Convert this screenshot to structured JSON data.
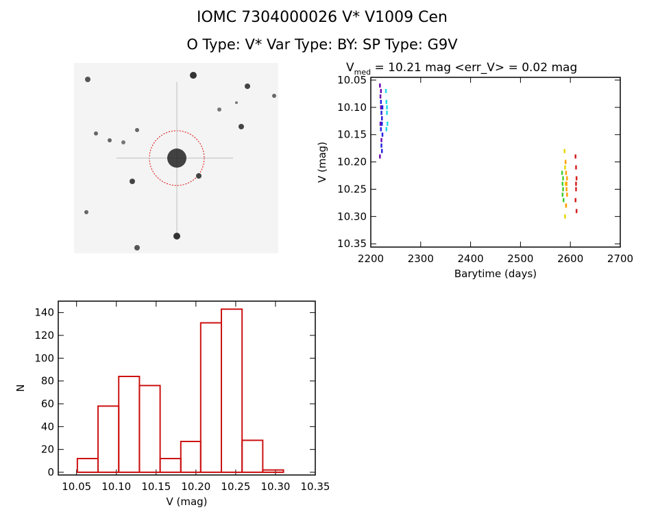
{
  "header": {
    "title": "IOMC 7304000026    V* V1009 Cen",
    "subtitle": "O Type: V*  Var Type: BY:  SP Type: G9V"
  },
  "chart_data": [
    {
      "type": "scatter",
      "title": {
        "main": "V",
        "sub": "med",
        "rest": " = 10.21 mag <err_V> = 0.02 mag"
      },
      "x_label": "Barytime (days)",
      "y_label": "V (mag)",
      "xlim": [
        2200,
        2700
      ],
      "xticks": [
        2200,
        2300,
        2400,
        2500,
        2600,
        2700
      ],
      "ylim": [
        10.356,
        10.045
      ],
      "yticks": [
        10.05,
        {
          "value": 10.1,
          "label": "10.10"
        },
        10.15,
        {
          "value": 10.2,
          "label": "10.20"
        },
        10.25,
        {
          "value": 10.3,
          "label": "10.30"
        },
        10.35
      ],
      "series": [
        {
          "color": "#6a0ab0",
          "x": [
            2218,
            2219,
            2220,
            2219,
            2221,
            2218,
            2220,
            2222
          ],
          "values": [
            10.06,
            10.08,
            10.1,
            10.13,
            10.16,
            10.19,
            10.07,
            10.12
          ]
        },
        {
          "color": "#2424e0",
          "x": [
            2220,
            2221,
            2222,
            2223,
            2221,
            2222,
            2220,
            2223,
            2222
          ],
          "values": [
            10.09,
            10.11,
            10.13,
            10.15,
            10.17,
            10.12,
            10.14,
            10.1,
            10.18
          ]
        },
        {
          "color": "#20d8e8",
          "x": [
            2230,
            2231,
            2232,
            2233,
            2231,
            2232
          ],
          "values": [
            10.07,
            10.09,
            10.11,
            10.13,
            10.14,
            10.1
          ]
        },
        {
          "color": "#44cc30",
          "x": [
            2583,
            2584,
            2585,
            2586,
            2584,
            2585
          ],
          "values": [
            10.22,
            10.24,
            10.25,
            10.27,
            10.26,
            10.23
          ]
        },
        {
          "color": "#e6d800",
          "x": [
            2588,
            2589,
            2590,
            2591,
            2589
          ],
          "values": [
            10.18,
            10.21,
            10.24,
            10.28,
            10.3
          ]
        },
        {
          "color": "#ff9f00",
          "x": [
            2590,
            2591,
            2592,
            2593,
            2591,
            2592,
            2593
          ],
          "values": [
            10.2,
            10.22,
            10.24,
            10.26,
            10.28,
            10.25,
            10.23
          ]
        },
        {
          "color": "#d42020",
          "x": [
            2610,
            2611,
            2612,
            2611,
            2610,
            2612,
            2611
          ],
          "values": [
            10.19,
            10.21,
            10.23,
            10.25,
            10.27,
            10.29,
            10.24
          ]
        }
      ]
    },
    {
      "type": "histogram",
      "x_label": "V (mag)",
      "y_label": "N",
      "color": "#cc1111",
      "bins": [
        10.051,
        10.077,
        10.103,
        10.129,
        10.155,
        10.181,
        10.206,
        10.232,
        10.258,
        10.284,
        10.31
      ],
      "values": [
        12,
        58,
        84,
        76,
        12,
        27,
        131,
        143,
        28,
        2
      ],
      "xlim": [
        10.027,
        10.35
      ],
      "xticks": [
        10.05,
        {
          "value": 10.1,
          "label": "10.10"
        },
        10.15,
        {
          "value": 10.2,
          "label": "10.20"
        },
        10.25,
        {
          "value": 10.3,
          "label": "10.30"
        },
        10.35
      ],
      "ylim": [
        -2.4,
        150
      ],
      "yticks": [
        0,
        20,
        40,
        60,
        80,
        100,
        120,
        140
      ]
    }
  ]
}
